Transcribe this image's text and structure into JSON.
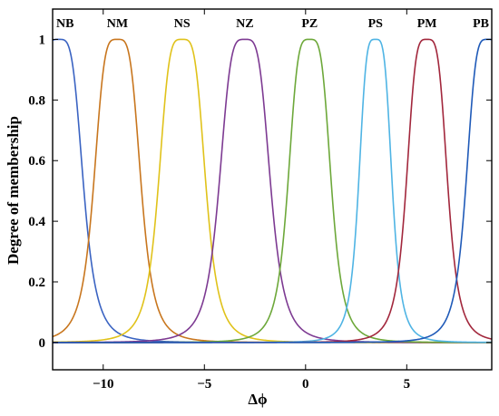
{
  "chart_data": {
    "type": "line",
    "title": "",
    "xlabel": "Δϕ",
    "ylabel": "Degree of membership",
    "xlim": [
      -12.5,
      9.2
    ],
    "ylim": [
      -0.09,
      1.1
    ],
    "x_ticks": [
      -10,
      -5,
      0,
      5
    ],
    "x_tick_labels": [
      "−10",
      "−5",
      "0",
      "5"
    ],
    "y_ticks": [
      0,
      0.2,
      0.4,
      0.6,
      0.8,
      1
    ],
    "y_tick_labels": [
      "0",
      "0.2",
      "0.4",
      "0.6",
      "0.8",
      "1"
    ],
    "grid": false,
    "legend": "none",
    "curve_shape": "generalized bell",
    "series": [
      {
        "name": "NB",
        "center": -12.2,
        "half_width": 1.25,
        "slope": 2,
        "color": "#3a63c2"
      },
      {
        "name": "NM",
        "center": -9.3,
        "half_width": 1.2,
        "slope": 2,
        "color": "#c8761e"
      },
      {
        "name": "NS",
        "center": -6.1,
        "half_width": 1.2,
        "slope": 2,
        "color": "#e0c21a"
      },
      {
        "name": "NZ",
        "center": -3.0,
        "half_width": 1.3,
        "slope": 2,
        "color": "#7d3a92"
      },
      {
        "name": "PZ",
        "center": 0.2,
        "half_width": 1.1,
        "slope": 2,
        "color": "#6da83a"
      },
      {
        "name": "PS",
        "center": 3.45,
        "half_width": 0.85,
        "slope": 2,
        "color": "#4fb4e4"
      },
      {
        "name": "PM",
        "center": 6.0,
        "half_width": 1.05,
        "slope": 2,
        "color": "#a2273c"
      },
      {
        "name": "PB",
        "center": 9.0,
        "half_width": 1.1,
        "slope": 2,
        "color": "#1f5ab8"
      }
    ]
  }
}
